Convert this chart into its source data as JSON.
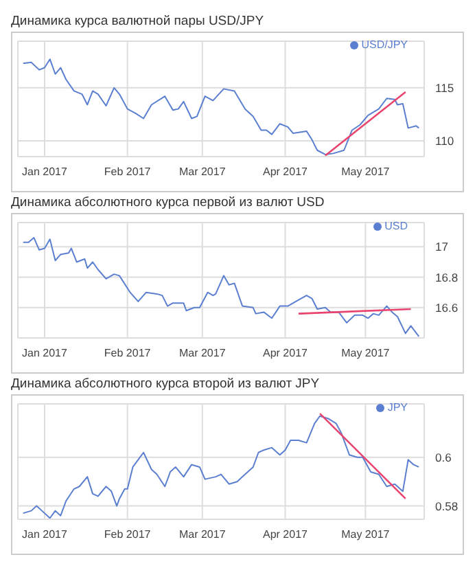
{
  "chart_data": [
    {
      "type": "line",
      "title": "Динамика курса валютной пары USD/JPY",
      "xlim": [
        "2016-12-22",
        "2017-05-23"
      ],
      "ylim": [
        108.5,
        119.4
      ],
      "yticks": [
        110,
        115
      ],
      "xticks": [
        {
          "value": "2017-01-01",
          "label": "Jan 2017"
        },
        {
          "value": "2017-02-01",
          "label": "Feb 2017"
        },
        {
          "value": "2017-03-01",
          "label": "Mar 2017"
        },
        {
          "value": "2017-04-01",
          "label": "Apr 2017"
        },
        {
          "value": "2017-05-01",
          "label": "May 2017"
        }
      ],
      "grid": true,
      "legend": "top right",
      "series": [
        {
          "name": "USD/JPY",
          "color": "#5b7fd0",
          "x": [
            "2016-12-24",
            "2016-12-27",
            "2016-12-30",
            "2017-01-01",
            "2017-01-03",
            "2017-01-05",
            "2017-01-07",
            "2017-01-09",
            "2017-01-12",
            "2017-01-15",
            "2017-01-17",
            "2017-01-19",
            "2017-01-21",
            "2017-01-24",
            "2017-01-27",
            "2017-01-29",
            "2017-02-01",
            "2017-02-04",
            "2017-02-07",
            "2017-02-10",
            "2017-02-15",
            "2017-02-18",
            "2017-02-20",
            "2017-02-22",
            "2017-02-25",
            "2017-02-27",
            "2017-03-02",
            "2017-03-05",
            "2017-03-09",
            "2017-03-13",
            "2017-03-17",
            "2017-03-20",
            "2017-03-23",
            "2017-03-25",
            "2017-03-27",
            "2017-03-30",
            "2017-04-02",
            "2017-04-04",
            "2017-04-09",
            "2017-04-11",
            "2017-04-13",
            "2017-04-16",
            "2017-04-19",
            "2017-04-23",
            "2017-04-26",
            "2017-04-29",
            "2017-05-02",
            "2017-05-06",
            "2017-05-09",
            "2017-05-12",
            "2017-05-13",
            "2017-05-15",
            "2017-05-17",
            "2017-05-20",
            "2017-05-21"
          ],
          "values": [
            117.3,
            117.4,
            116.7,
            116.9,
            117.7,
            116.3,
            116.9,
            115.8,
            114.7,
            114.4,
            113.4,
            114.7,
            114.4,
            113.3,
            115.0,
            114.4,
            113.0,
            112.6,
            112.1,
            113.4,
            114.2,
            112.9,
            113.0,
            113.7,
            112.1,
            112.3,
            114.2,
            113.8,
            114.9,
            114.7,
            113.0,
            112.3,
            111.0,
            111.0,
            110.6,
            111.6,
            111.3,
            110.7,
            110.9,
            110.1,
            109.1,
            108.7,
            108.8,
            109.1,
            111.0,
            111.5,
            112.4,
            113.0,
            114.0,
            113.9,
            113.4,
            113.5,
            111.2,
            111.4,
            111.2
          ]
        },
        {
          "type": "line",
          "color": "#e8446e",
          "x": [
            "2017-04-16",
            "2017-05-16"
          ],
          "values": [
            108.6,
            114.6
          ]
        }
      ]
    },
    {
      "type": "line",
      "title": "Динамика абсолютного курса первой из валют USD",
      "xlim": [
        "2016-12-22",
        "2017-05-23"
      ],
      "ylim": [
        16.4,
        17.16
      ],
      "yticks": [
        16.6,
        16.8,
        17
      ],
      "xticks": [
        {
          "value": "2017-01-01",
          "label": "Jan 2017"
        },
        {
          "value": "2017-02-01",
          "label": "Feb 2017"
        },
        {
          "value": "2017-03-01",
          "label": "Mar 2017"
        },
        {
          "value": "2017-04-01",
          "label": "Apr 2017"
        },
        {
          "value": "2017-05-01",
          "label": "May 2017"
        }
      ],
      "grid": true,
      "legend": "top right",
      "series": [
        {
          "name": "USD",
          "color": "#5b7fd0",
          "x": [
            "2016-12-24",
            "2016-12-26",
            "2016-12-28",
            "2016-12-30",
            "2017-01-01",
            "2017-01-03",
            "2017-01-05",
            "2017-01-07",
            "2017-01-10",
            "2017-01-11",
            "2017-01-13",
            "2017-01-16",
            "2017-01-17",
            "2017-01-19",
            "2017-01-21",
            "2017-01-24",
            "2017-01-27",
            "2017-01-29",
            "2017-02-02",
            "2017-02-05",
            "2017-02-08",
            "2017-02-12",
            "2017-02-14",
            "2017-02-16",
            "2017-02-18",
            "2017-02-22",
            "2017-02-23",
            "2017-02-26",
            "2017-02-28",
            "2017-03-03",
            "2017-03-05",
            "2017-03-06",
            "2017-03-09",
            "2017-03-11",
            "2017-03-13",
            "2017-03-16",
            "2017-03-20",
            "2017-03-21",
            "2017-03-24",
            "2017-03-27",
            "2017-03-30",
            "2017-04-02",
            "2017-04-04",
            "2017-04-06",
            "2017-04-09",
            "2017-04-11",
            "2017-04-13",
            "2017-04-16",
            "2017-04-18",
            "2017-04-21",
            "2017-04-24",
            "2017-04-27",
            "2017-04-30",
            "2017-05-02",
            "2017-05-04",
            "2017-05-06",
            "2017-05-09",
            "2017-05-11",
            "2017-05-13",
            "2017-05-16",
            "2017-05-18",
            "2017-05-21"
          ],
          "values": [
            17.03,
            17.03,
            17.06,
            16.98,
            16.99,
            17.05,
            16.91,
            16.95,
            16.96,
            16.99,
            16.9,
            16.92,
            16.86,
            16.9,
            16.85,
            16.79,
            16.82,
            16.81,
            16.7,
            16.64,
            16.7,
            16.69,
            16.68,
            16.61,
            16.63,
            16.63,
            16.58,
            16.6,
            16.6,
            16.7,
            16.68,
            16.69,
            16.81,
            16.75,
            16.76,
            16.61,
            16.6,
            16.56,
            16.57,
            16.53,
            16.61,
            16.61,
            16.63,
            16.65,
            16.68,
            16.66,
            16.59,
            16.6,
            16.57,
            16.57,
            16.5,
            16.55,
            16.55,
            16.53,
            16.56,
            16.55,
            16.61,
            16.57,
            16.54,
            16.43,
            16.48,
            16.41
          ]
        },
        {
          "type": "line",
          "color": "#e8446e",
          "x": [
            "2017-04-06",
            "2017-05-18"
          ],
          "values": [
            16.56,
            16.59
          ]
        }
      ]
    },
    {
      "type": "line",
      "title": "Динамика абсолютного курса второй из валют JPY",
      "xlim": [
        "2016-12-22",
        "2017-05-23"
      ],
      "ylim": [
        0.5745,
        0.622
      ],
      "yticks": [
        0.58,
        0.6
      ],
      "xticks": [
        {
          "value": "2017-01-01",
          "label": "Jan 2017"
        },
        {
          "value": "2017-02-01",
          "label": "Feb 2017"
        },
        {
          "value": "2017-03-01",
          "label": "Mar 2017"
        },
        {
          "value": "2017-04-01",
          "label": "Apr 2017"
        },
        {
          "value": "2017-05-01",
          "label": "May 2017"
        }
      ],
      "grid": true,
      "legend": "top right",
      "series": [
        {
          "name": "JPY",
          "color": "#5b7fd0",
          "x": [
            "2016-12-24",
            "2016-12-27",
            "2016-12-29",
            "2016-12-31",
            "2017-01-03",
            "2017-01-05",
            "2017-01-07",
            "2017-01-09",
            "2017-01-12",
            "2017-01-14",
            "2017-01-17",
            "2017-01-19",
            "2017-01-21",
            "2017-01-24",
            "2017-01-26",
            "2017-01-28",
            "2017-01-29",
            "2017-01-31",
            "2017-02-01",
            "2017-02-03",
            "2017-02-05",
            "2017-02-07",
            "2017-02-10",
            "2017-02-12",
            "2017-02-15",
            "2017-02-17",
            "2017-02-19",
            "2017-02-22",
            "2017-02-25",
            "2017-02-28",
            "2017-03-02",
            "2017-03-06",
            "2017-03-08",
            "2017-03-11",
            "2017-03-14",
            "2017-03-17",
            "2017-03-20",
            "2017-03-22",
            "2017-03-24",
            "2017-03-27",
            "2017-03-30",
            "2017-04-01",
            "2017-04-03",
            "2017-04-06",
            "2017-04-09",
            "2017-04-12",
            "2017-04-14",
            "2017-04-17",
            "2017-04-20",
            "2017-04-22",
            "2017-04-25",
            "2017-04-28",
            "2017-04-30",
            "2017-05-03",
            "2017-05-06",
            "2017-05-09",
            "2017-05-12",
            "2017-05-15",
            "2017-05-17",
            "2017-05-19",
            "2017-05-21"
          ],
          "values": [
            0.577,
            0.578,
            0.58,
            0.578,
            0.575,
            0.578,
            0.576,
            0.582,
            0.587,
            0.588,
            0.592,
            0.585,
            0.584,
            0.588,
            0.586,
            0.58,
            0.583,
            0.587,
            0.587,
            0.596,
            0.599,
            0.602,
            0.595,
            0.593,
            0.588,
            0.594,
            0.596,
            0.592,
            0.597,
            0.596,
            0.591,
            0.592,
            0.593,
            0.589,
            0.59,
            0.593,
            0.596,
            0.602,
            0.603,
            0.604,
            0.601,
            0.603,
            0.607,
            0.607,
            0.606,
            0.614,
            0.617,
            0.616,
            0.614,
            0.61,
            0.601,
            0.6,
            0.6,
            0.594,
            0.593,
            0.588,
            0.589,
            0.586,
            0.599,
            0.597,
            0.596
          ]
        },
        {
          "type": "line",
          "color": "#e8446e",
          "x": [
            "2017-04-14",
            "2017-05-16"
          ],
          "values": [
            0.618,
            0.583
          ]
        }
      ]
    }
  ]
}
